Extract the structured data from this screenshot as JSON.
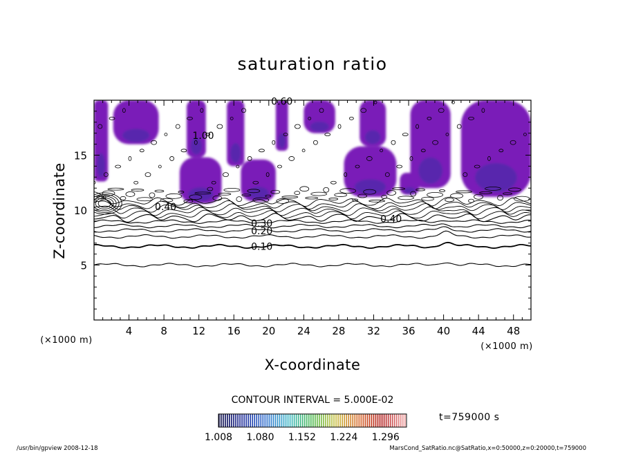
{
  "chart_data": {
    "type": "contour",
    "title": "saturation ratio",
    "xlabel": "X-coordinate",
    "ylabel": "Z-coordinate",
    "x_unit": "(×1000 m)",
    "y_unit": "(×1000 m)",
    "xlim": [
      0,
      50
    ],
    "ylim": [
      0,
      20
    ],
    "x_ticks": [
      4,
      8,
      12,
      16,
      20,
      24,
      28,
      32,
      36,
      40,
      44,
      48
    ],
    "y_ticks": [
      5,
      10,
      15
    ],
    "contour_interval_text": "CONTOUR INTERVAL = 5.000E-02",
    "time_label": "t=759000 s",
    "colorbar": {
      "ticks": [
        "1.008",
        "1.080",
        "1.152",
        "1.224",
        "1.296"
      ],
      "min": 1.008,
      "max": 1.332,
      "colors": [
        "#0a0a45",
        "#1e2a9a",
        "#2f6fd0",
        "#3cb8c8",
        "#48b84a",
        "#c8c040",
        "#d86a2a",
        "#b01818",
        "#f0a0a0"
      ]
    },
    "contour_labels": [
      {
        "value": "0.30",
        "x": 19.2,
        "y": 8.8
      },
      {
        "value": "0.20",
        "x": 19.2,
        "y": 8.1
      },
      {
        "value": "0.10",
        "x": 19.2,
        "y": 6.7
      },
      {
        "value": "0.40",
        "x": 34.0,
        "y": 9.2
      },
      {
        "value": "0.40",
        "x": 8.2,
        "y": 10.3
      },
      {
        "value": "0.60",
        "x": 21.5,
        "y": 19.9
      },
      {
        "value": "1.00",
        "x": 12.5,
        "y": 16.8
      }
    ],
    "contour_levels": [
      {
        "level": 0.05,
        "base": 5.0
      },
      {
        "level": 0.1,
        "base": 6.7
      },
      {
        "level": 0.15,
        "base": 7.6
      },
      {
        "level": 0.2,
        "base": 8.15
      },
      {
        "level": 0.25,
        "base": 8.55
      },
      {
        "level": 0.3,
        "base": 8.95
      },
      {
        "level": 0.35,
        "base": 9.3
      },
      {
        "level": 0.4,
        "base": 9.6
      },
      {
        "level": 0.45,
        "base": 9.9
      },
      {
        "level": 0.5,
        "base": 10.2
      },
      {
        "level": 0.55,
        "base": 10.45
      },
      {
        "level": 0.6,
        "base": 10.75
      }
    ],
    "supersaturated_regions": [
      {
        "x0": 0.0,
        "x1": 1.6,
        "y0": 12.6,
        "y1": 20
      },
      {
        "x0": 2.2,
        "x1": 7.4,
        "y0": 16.0,
        "y1": 20
      },
      {
        "x0": 9.8,
        "x1": 14.6,
        "y0": 10.6,
        "y1": 14.8
      },
      {
        "x0": 10.6,
        "x1": 12.8,
        "y0": 14.8,
        "y1": 20
      },
      {
        "x0": 15.2,
        "x1": 17.2,
        "y0": 14.0,
        "y1": 20
      },
      {
        "x0": 16.8,
        "x1": 20.8,
        "y0": 10.8,
        "y1": 14.6
      },
      {
        "x0": 20.8,
        "x1": 22.2,
        "y0": 15.4,
        "y1": 20
      },
      {
        "x0": 24.0,
        "x1": 27.6,
        "y0": 17.0,
        "y1": 20
      },
      {
        "x0": 28.6,
        "x1": 34.6,
        "y0": 11.2,
        "y1": 15.8
      },
      {
        "x0": 30.4,
        "x1": 33.4,
        "y0": 15.8,
        "y1": 20
      },
      {
        "x0": 35.0,
        "x1": 37.2,
        "y0": 11.4,
        "y1": 13.4
      },
      {
        "x0": 36.2,
        "x1": 40.8,
        "y0": 12.0,
        "y1": 20
      },
      {
        "x0": 42.0,
        "x1": 50.0,
        "y0": 11.2,
        "y1": 20
      }
    ]
  },
  "footer": {
    "left": "/usr/bin/gpview   2008-12-18",
    "right": "MarsCond_SatRatio.nc@SatRatio,x=0:50000,z=0:20000,t=759000"
  }
}
